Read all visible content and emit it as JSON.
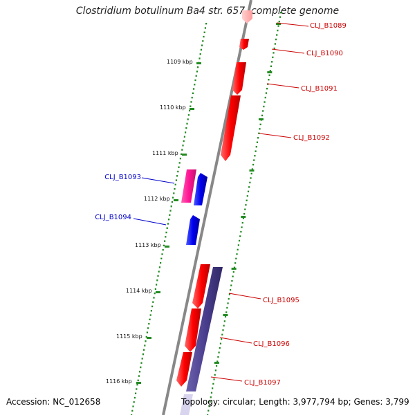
{
  "title": "Clostridium botulinum Ba4 str. 657, complete genome",
  "footer": {
    "accession": "Accession: NC_012658",
    "summary": "Topology: circular; Length: 3,977,794 bp; Genes: 3,799"
  },
  "colors": {
    "forward_gene": "#ff0000",
    "reverse_gene": "#0000ff",
    "pink_gene": "#ff1493",
    "purple_gene": "#4b3f8f",
    "forward_label": "#cc0000",
    "reverse_label": "#0000cc",
    "tick": "#228b22",
    "backbone": "#808080"
  },
  "kbp_ticks": [
    "1109 kbp",
    "1110 kbp",
    "1111 kbp",
    "1112 kbp",
    "1113 kbp",
    "1114 kbp",
    "1115 kbp",
    "1116 kbp"
  ],
  "genes": [
    {
      "label": "CLJ_B1089",
      "strand": "forward"
    },
    {
      "label": "CLJ_B1090",
      "strand": "forward"
    },
    {
      "label": "CLJ_B1091",
      "strand": "forward"
    },
    {
      "label": "CLJ_B1092",
      "strand": "forward"
    },
    {
      "label": "CLJ_B1093",
      "strand": "reverse"
    },
    {
      "label": "CLJ_B1094",
      "strand": "reverse"
    },
    {
      "label": "CLJ_B1095",
      "strand": "forward"
    },
    {
      "label": "CLJ_B1096",
      "strand": "forward"
    },
    {
      "label": "CLJ_B1097",
      "strand": "forward"
    }
  ]
}
